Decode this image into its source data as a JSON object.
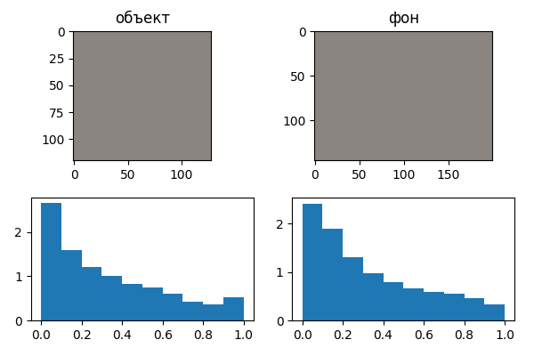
{
  "chart_data": [
    {
      "type": "image",
      "title": "объект",
      "xlim": [
        -0.5,
        127.5
      ],
      "ylim": [
        119.5,
        -0.5
      ],
      "xticks": [
        0,
        50,
        100
      ],
      "yticks": [
        0,
        25,
        50,
        75,
        100
      ]
    },
    {
      "type": "image",
      "title": "фон",
      "xlim": [
        -0.5,
        199.5
      ],
      "ylim": [
        144.5,
        -0.5
      ],
      "xticks": [
        0,
        50,
        100,
        150
      ],
      "yticks": [
        0,
        50,
        100
      ]
    },
    {
      "type": "histogram",
      "bins": [
        0.0,
        0.1,
        0.2,
        0.3,
        0.4,
        0.5,
        0.6,
        0.7,
        0.8,
        0.9,
        1.0
      ],
      "counts": [
        2.65,
        1.6,
        1.2,
        1.0,
        0.83,
        0.75,
        0.6,
        0.43,
        0.37,
        0.53
      ],
      "color": "#1f77b4",
      "xlim": [
        -0.05,
        1.05
      ],
      "ylim": [
        0,
        2.78
      ],
      "xticks": [
        {
          "value": 0.0,
          "label": "0.0"
        },
        {
          "value": 0.2,
          "label": "0.2"
        },
        {
          "value": 0.4,
          "label": "0.4"
        },
        {
          "value": 0.6,
          "label": "0.6"
        },
        {
          "value": 0.8,
          "label": "0.8"
        },
        {
          "value": 1.0,
          "label": "1.0"
        }
      ],
      "yticks": [
        0,
        1,
        2
      ]
    },
    {
      "type": "histogram",
      "bins": [
        0.0,
        0.1,
        0.2,
        0.3,
        0.4,
        0.5,
        0.6,
        0.7,
        0.8,
        0.9,
        1.0
      ],
      "counts": [
        2.42,
        1.9,
        1.3,
        0.97,
        0.8,
        0.67,
        0.58,
        0.55,
        0.46,
        0.33
      ],
      "color": "#1f77b4",
      "xlim": [
        -0.05,
        1.05
      ],
      "ylim": [
        0,
        2.54
      ],
      "xticks": [
        {
          "value": 0.0,
          "label": "0.0"
        },
        {
          "value": 0.2,
          "label": "0.2"
        },
        {
          "value": 0.4,
          "label": "0.4"
        },
        {
          "value": 0.6,
          "label": "0.6"
        },
        {
          "value": 0.8,
          "label": "0.8"
        },
        {
          "value": 1.0,
          "label": "1.0"
        }
      ],
      "yticks": [
        0,
        1,
        2
      ]
    }
  ]
}
